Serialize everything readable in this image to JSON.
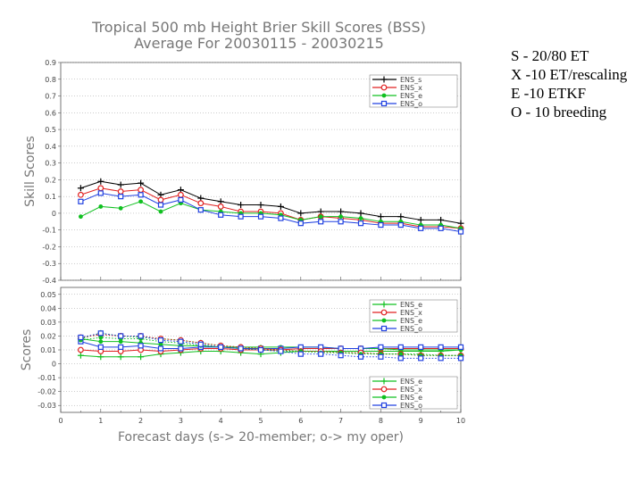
{
  "title": {
    "line1": "Tropical 500 mb Height Brier Skill Scores (BSS)",
    "line2": "Average For 20030115 - 20030215"
  },
  "notes": [
    "S - 20/80 ET",
    "X -10 ET/rescaling",
    "E  -10 ETKF",
    "O  - 10 breeding"
  ],
  "colors": {
    "ENS_s": "#000000",
    "ENS_x": "#e02020",
    "ENS_e": "#10c020",
    "ENS_o": "#2040e0"
  },
  "chart_data": [
    {
      "type": "line",
      "ylabel": "Skill Scores",
      "xlabel": "",
      "ylim": [
        -0.4,
        0.9
      ],
      "yticks": [
        -0.4,
        -0.3,
        -0.2,
        -0.1,
        0,
        0.1,
        0.2,
        0.3,
        0.4,
        0.5,
        0.6,
        0.7,
        0.8,
        0.9
      ],
      "ytick_labels": [
        "-0.4",
        "-0.3",
        "-0.2",
        "-0.1",
        "0",
        "0.1",
        "0.2",
        "0.3",
        "0.4",
        "0.5",
        "0.6",
        "0.7",
        "0.8",
        "0.9"
      ],
      "xlim": [
        0,
        10
      ],
      "legend": "top-right",
      "x": [
        0.5,
        1,
        1.5,
        2,
        2.5,
        3,
        3.5,
        4,
        4.5,
        5,
        5.5,
        6,
        6.5,
        7,
        7.5,
        8,
        8.5,
        9,
        9.5,
        10
      ],
      "series": [
        {
          "name": "ENS_s",
          "marker": "plus",
          "values": [
            0.15,
            0.19,
            0.17,
            0.18,
            0.11,
            0.14,
            0.09,
            0.07,
            0.05,
            0.05,
            0.04,
            0.0,
            0.01,
            0.01,
            0.0,
            -0.02,
            -0.02,
            -0.04,
            -0.04,
            -0.06
          ]
        },
        {
          "name": "ENS_x",
          "marker": "circle",
          "values": [
            0.11,
            0.15,
            0.13,
            0.14,
            0.08,
            0.11,
            0.06,
            0.04,
            0.01,
            0.01,
            0.0,
            -0.04,
            -0.02,
            -0.03,
            -0.04,
            -0.06,
            -0.06,
            -0.08,
            -0.08,
            -0.09
          ]
        },
        {
          "name": "ENS_e",
          "marker": "dot",
          "values": [
            -0.02,
            0.04,
            0.03,
            0.07,
            0.01,
            0.06,
            0.02,
            0.01,
            0.0,
            0.0,
            -0.01,
            -0.04,
            -0.02,
            -0.02,
            -0.03,
            -0.05,
            -0.05,
            -0.07,
            -0.07,
            -0.09
          ]
        },
        {
          "name": "ENS_o",
          "marker": "square",
          "values": [
            0.07,
            0.12,
            0.1,
            0.11,
            0.05,
            0.08,
            0.02,
            -0.01,
            -0.02,
            -0.02,
            -0.03,
            -0.06,
            -0.05,
            -0.05,
            -0.06,
            -0.07,
            -0.07,
            -0.09,
            -0.09,
            -0.11
          ]
        }
      ]
    },
    {
      "type": "line",
      "ylabel": "Scores",
      "xlabel": "Forecast days (s-> 20-member; o-> my oper)",
      "ylim": [
        -0.035,
        0.055
      ],
      "yticks": [
        -0.03,
        -0.02,
        -0.01,
        0,
        0.01,
        0.02,
        0.03,
        0.04,
        0.05
      ],
      "ytick_labels": [
        "-0.03",
        "-0.02",
        "-0.01",
        "0",
        "0.01",
        "0.02",
        "0.03",
        "0.04",
        "0.05"
      ],
      "xlim": [
        0,
        10
      ],
      "xticks": [
        0,
        1,
        2,
        3,
        4,
        5,
        6,
        7,
        8,
        9,
        10
      ],
      "xtick_labels": [
        "0",
        "1",
        "2",
        "3",
        "4",
        "5",
        "6",
        "7",
        "8",
        "9",
        "10"
      ],
      "legend": "top-right and bottom-right",
      "x": [
        0.5,
        1,
        1.5,
        2,
        2.5,
        3,
        3.5,
        4,
        4.5,
        5,
        5.5,
        6,
        6.5,
        7,
        7.5,
        8,
        8.5,
        9,
        9.5,
        10
      ],
      "series": [
        {
          "name": "ENS_e",
          "marker": "plus",
          "style": "solid",
          "values": [
            0.006,
            0.005,
            0.005,
            0.005,
            0.007,
            0.008,
            0.009,
            0.009,
            0.008,
            0.007,
            0.008,
            0.009,
            0.009,
            0.009,
            0.009,
            0.009,
            0.009,
            0.009,
            0.009,
            0.01
          ]
        },
        {
          "name": "ENS_x",
          "marker": "circle",
          "style": "solid",
          "values": [
            0.01,
            0.009,
            0.009,
            0.01,
            0.009,
            0.01,
            0.011,
            0.011,
            0.01,
            0.01,
            0.01,
            0.011,
            0.011,
            0.011,
            0.011,
            0.011,
            0.011,
            0.011,
            0.011,
            0.011
          ]
        },
        {
          "name": "ENS_e",
          "marker": "dot",
          "style": "solid",
          "values": [
            0.018,
            0.016,
            0.016,
            0.015,
            0.014,
            0.013,
            0.013,
            0.012,
            0.012,
            0.012,
            0.012,
            0.012,
            0.012,
            0.011,
            0.011,
            0.011,
            0.01,
            0.01,
            0.01,
            0.01
          ]
        },
        {
          "name": "ENS_o",
          "marker": "square",
          "style": "solid",
          "values": [
            0.016,
            0.012,
            0.012,
            0.013,
            0.011,
            0.011,
            0.012,
            0.012,
            0.011,
            0.011,
            0.011,
            0.012,
            0.012,
            0.011,
            0.011,
            0.012,
            0.012,
            0.012,
            0.012,
            0.012
          ]
        },
        {
          "name": "ENS_e",
          "marker": "plus",
          "style": "dotted",
          "values": [
            0.018,
            0.022,
            0.02,
            0.019,
            0.018,
            0.017,
            0.015,
            0.013,
            0.012,
            0.011,
            0.01,
            0.009,
            0.009,
            0.008,
            0.008,
            0.007,
            0.007,
            0.007,
            0.006,
            0.006
          ]
        },
        {
          "name": "ENS_x",
          "marker": "circle",
          "style": "dotted",
          "values": [
            0.019,
            0.021,
            0.02,
            0.02,
            0.018,
            0.017,
            0.015,
            0.013,
            0.012,
            0.011,
            0.01,
            0.009,
            0.009,
            0.008,
            0.008,
            0.007,
            0.007,
            0.006,
            0.006,
            0.006
          ]
        },
        {
          "name": "ENS_e",
          "marker": "dot",
          "style": "dotted",
          "values": [
            0.017,
            0.019,
            0.018,
            0.018,
            0.016,
            0.015,
            0.013,
            0.012,
            0.011,
            0.01,
            0.009,
            0.009,
            0.008,
            0.008,
            0.007,
            0.007,
            0.007,
            0.006,
            0.006,
            0.006
          ]
        },
        {
          "name": "ENS_o",
          "marker": "square",
          "style": "dotted",
          "values": [
            0.019,
            0.022,
            0.02,
            0.02,
            0.017,
            0.016,
            0.014,
            0.012,
            0.011,
            0.01,
            0.009,
            0.007,
            0.007,
            0.006,
            0.005,
            0.005,
            0.004,
            0.004,
            0.004,
            0.004
          ]
        }
      ]
    }
  ]
}
